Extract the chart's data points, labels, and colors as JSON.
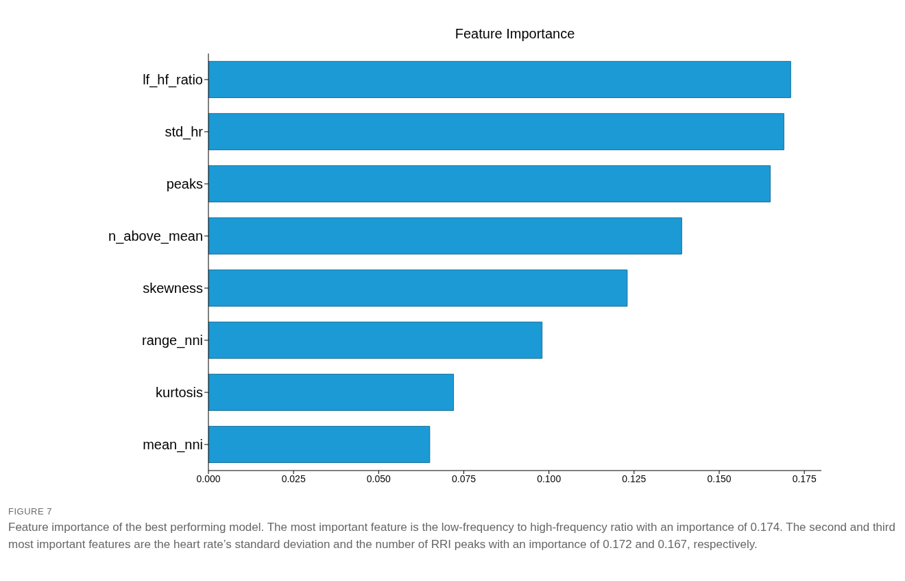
{
  "chart_data": {
    "type": "bar",
    "orientation": "horizontal",
    "title": "Feature Importance",
    "categories": [
      "lf_hf_ratio",
      "std_hr",
      "peaks",
      "n_above_mean",
      "skewness",
      "range_nni",
      "kurtosis",
      "mean_nni"
    ],
    "values": [
      0.171,
      0.169,
      0.165,
      0.139,
      0.123,
      0.098,
      0.072,
      0.065
    ],
    "color": "#1b9ad6",
    "xlim": [
      0,
      0.18
    ],
    "xticks": [
      {
        "value": 0,
        "label": "0.000"
      },
      {
        "value": 0.025,
        "label": "0.025"
      },
      {
        "value": 0.05,
        "label": "0.050"
      },
      {
        "value": 0.075,
        "label": "0.075"
      },
      {
        "value": 0.1,
        "label": "0.100"
      },
      {
        "value": 0.125,
        "label": "0.125"
      },
      {
        "value": 0.15,
        "label": "0.150"
      },
      {
        "value": 0.175,
        "label": "0.175"
      }
    ],
    "grid": false,
    "legend": false,
    "annotations": [
      "FIGURE 7",
      "Feature importance of the best performing model. The most important feature is the low-frequency to high-frequency ratio with an importance of 0.174. The second and third most important features are the heart rate’s standard deviation and the number of RRI peaks with an importance of 0.172 and 0.167, respectively."
    ]
  }
}
